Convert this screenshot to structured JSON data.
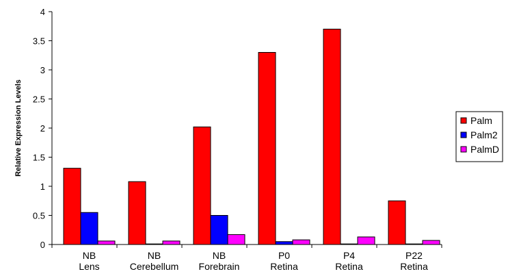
{
  "chart_data": {
    "type": "bar",
    "title": "",
    "xlabel": "",
    "ylabel": "Relative Expression Levels",
    "ylim": [
      0,
      4
    ],
    "yticks": [
      "0",
      "0.5",
      "1",
      "1.5",
      "2",
      "2.5",
      "3",
      "3.5",
      "4"
    ],
    "categories": [
      [
        "NB",
        "Lens"
      ],
      [
        "NB",
        "Cerebellum"
      ],
      [
        "NB",
        "Forebrain"
      ],
      [
        "P0",
        "Retina"
      ],
      [
        "P4",
        "Retina"
      ],
      [
        "P22",
        "Retina"
      ]
    ],
    "series": [
      {
        "name": "Palm",
        "color": "#ff0000",
        "values": [
          1.31,
          1.08,
          2.02,
          3.3,
          3.7,
          0.75
        ]
      },
      {
        "name": "Palm2",
        "color": "#0000ff",
        "values": [
          0.55,
          0.01,
          0.5,
          0.05,
          0.01,
          0.01
        ]
      },
      {
        "name": "PalmD",
        "color": "#ff00ff",
        "values": [
          0.06,
          0.06,
          0.17,
          0.08,
          0.13,
          0.07
        ]
      }
    ],
    "grid": false,
    "legend": "right"
  }
}
